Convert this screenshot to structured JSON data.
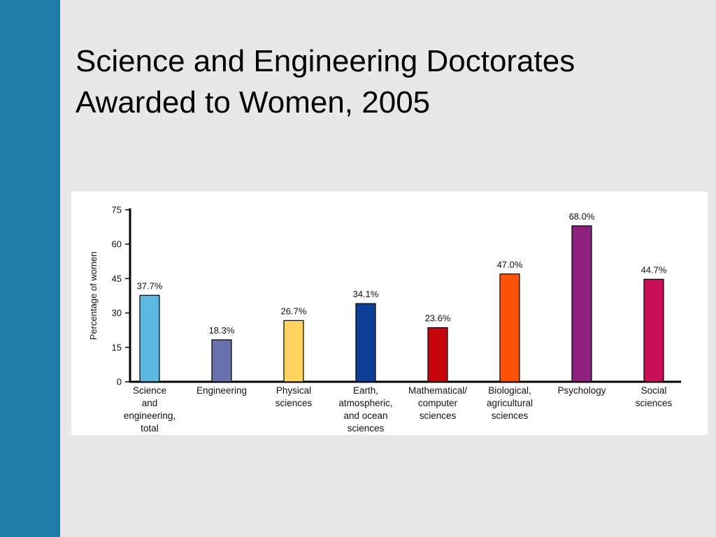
{
  "slide": {
    "title_lines": [
      "Science and Engineering Doctorates",
      "Awarded to Women, 2005"
    ],
    "accent_color": "#1f7ca6",
    "background_color": "#e8e8e8"
  },
  "chart_data": {
    "type": "bar",
    "title": "",
    "xlabel": "",
    "ylabel": "Percentage of women",
    "ylim": [
      0,
      75
    ],
    "yticks": [
      "0",
      "15",
      "30",
      "45",
      "60",
      "75"
    ],
    "grid": false,
    "legend": "none",
    "categories": [
      [
        "Science",
        "and",
        "engineering,",
        "total"
      ],
      [
        "Engineering"
      ],
      [
        "Physical",
        "sciences"
      ],
      [
        "Earth,",
        "atmospheric,",
        "and ocean",
        "sciences"
      ],
      [
        "Mathematical/",
        "computer",
        "sciences"
      ],
      [
        "Biological,",
        "agricultural",
        "sciences"
      ],
      [
        "Psychology"
      ],
      [
        "Social",
        "sciences"
      ]
    ],
    "values": [
      37.7,
      18.3,
      26.7,
      34.1,
      23.6,
      47.0,
      68.0,
      44.7
    ],
    "data_labels": [
      "37.7%",
      "18.3%",
      "26.7%",
      "34.1%",
      "23.6%",
      "47.0%",
      "68.0%",
      "44.7%"
    ],
    "colors": [
      "#5bb8df",
      "#6870ae",
      "#fdd35e",
      "#0d3e95",
      "#c5070d",
      "#fe5209",
      "#8e217f",
      "#c80f57"
    ]
  }
}
